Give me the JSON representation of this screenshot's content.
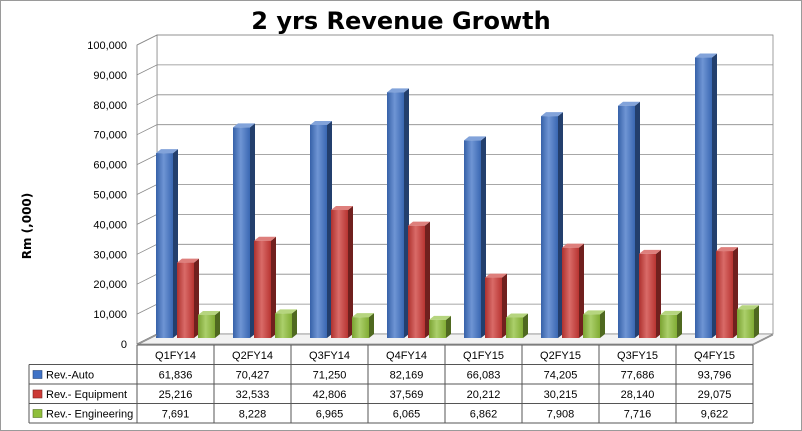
{
  "chart_data": {
    "type": "bar",
    "title": "2 yrs Revenue Growth",
    "ylabel": "Rm (,000)",
    "xlabel": "",
    "ylim": [
      0,
      100000
    ],
    "yticks": [
      "0",
      "10,000",
      "20,000",
      "30,000",
      "40,000",
      "50,000",
      "60,000",
      "70,000",
      "80,000",
      "90,000",
      "100,000"
    ],
    "ytick_values": [
      0,
      10000,
      20000,
      30000,
      40000,
      50000,
      60000,
      70000,
      80000,
      90000,
      100000
    ],
    "grid": true,
    "legend": "data-table-left",
    "categories": [
      "Q1FY14",
      "Q2FY14",
      "Q3FY14",
      "Q4FY14",
      "Q1FY15",
      "Q2FY15",
      "Q3FY15",
      "Q4FY15"
    ],
    "series": [
      {
        "name": "Rev.-Auto",
        "color": "#3f72c6",
        "values": [
          61836,
          70427,
          71250,
          82169,
          66083,
          74205,
          77686,
          93796
        ],
        "labels": [
          "61,836",
          "70,427",
          "71,250",
          "82,169",
          "66,083",
          "74,205",
          "77,686",
          "93,796"
        ]
      },
      {
        "name": "Rev.- Equipment",
        "color": "#cc3a36",
        "values": [
          25216,
          32533,
          42806,
          37569,
          20212,
          30215,
          28140,
          29075
        ],
        "labels": [
          "25,216",
          "32,533",
          "42,806",
          "37,569",
          "20,212",
          "30,215",
          "28,140",
          "29,075"
        ]
      },
      {
        "name": "Rev.- Engineering",
        "color": "#8fbf3a",
        "values": [
          7691,
          8228,
          6965,
          6065,
          6862,
          7908,
          7716,
          9622
        ],
        "labels": [
          "7,691",
          "8,228",
          "6,965",
          "6,065",
          "6,862",
          "7,908",
          "7,716",
          "9,622"
        ]
      }
    ]
  }
}
